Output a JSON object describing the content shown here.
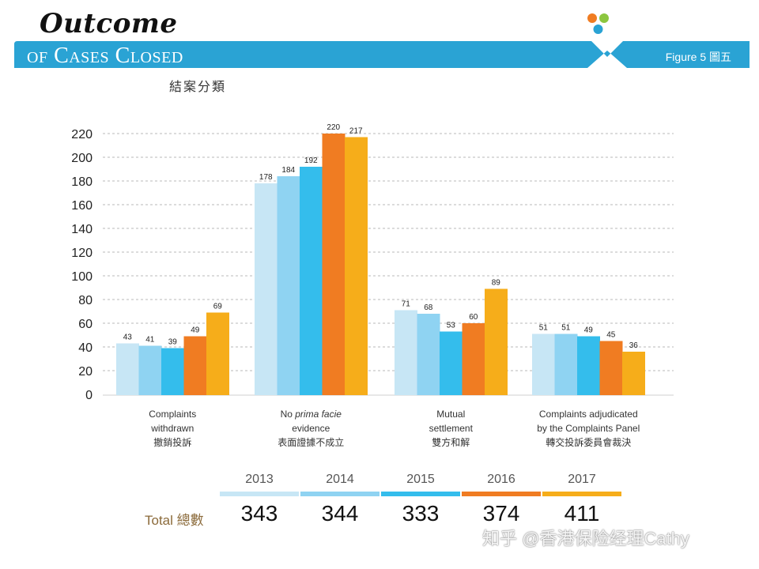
{
  "header": {
    "title_script": "Outcome",
    "title_line2": "of Cases Closed",
    "figure_label": "Figure 5 圖五",
    "zh_title": "結案分類"
  },
  "colors": {
    "banner": "#2aa3d4",
    "dot_orange": "#f07c22",
    "dot_green": "#8cc63f",
    "dot_blue": "#2aa3d4",
    "series": [
      "#c7e6f5",
      "#8fd3f2",
      "#34bdec",
      "#f07c22",
      "#f6ad1a"
    ]
  },
  "chart_data": {
    "type": "bar",
    "categories": [
      [
        "Complaints",
        "withdrawn",
        "撤銷投訴"
      ],
      [
        "No prima facie",
        "evidence",
        "表面證據不成立"
      ],
      [
        "Mutual",
        "settlement",
        "雙方和解"
      ],
      [
        "Complaints adjudicated",
        "by the Complaints Panel",
        "轉交投訴委員會裁決"
      ]
    ],
    "series": [
      {
        "name": "2013",
        "values": [
          43,
          178,
          71,
          51
        ]
      },
      {
        "name": "2014",
        "values": [
          41,
          184,
          68,
          51
        ]
      },
      {
        "name": "2015",
        "values": [
          39,
          192,
          53,
          49
        ]
      },
      {
        "name": "2016",
        "values": [
          49,
          220,
          60,
          45
        ]
      },
      {
        "name": "2017",
        "values": [
          69,
          217,
          89,
          36
        ]
      }
    ],
    "ylim": [
      0,
      220
    ],
    "yticks": [
      0,
      20,
      40,
      60,
      80,
      100,
      120,
      140,
      160,
      180,
      200,
      220
    ],
    "grid": true,
    "legend": "bottom"
  },
  "totals": {
    "label": "Total 總數",
    "years": [
      "2013",
      "2014",
      "2015",
      "2016",
      "2017"
    ],
    "values": [
      "343",
      "344",
      "333",
      "374",
      "411"
    ]
  },
  "watermark": "知乎 @香港保险经理Cathy"
}
